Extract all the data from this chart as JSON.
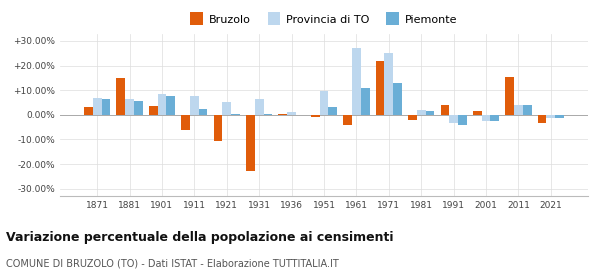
{
  "years": [
    1871,
    1881,
    1901,
    1911,
    1921,
    1931,
    1936,
    1951,
    1961,
    1971,
    1981,
    1991,
    2001,
    2011,
    2021
  ],
  "bruzolo": [
    3.0,
    15.0,
    3.5,
    -6.0,
    -10.5,
    -23.0,
    0.3,
    -1.0,
    -4.0,
    22.0,
    -2.0,
    4.0,
    1.5,
    15.5,
    -3.5
  ],
  "provincia_to": [
    7.0,
    6.5,
    8.5,
    7.5,
    5.0,
    6.5,
    1.0,
    9.5,
    27.0,
    25.0,
    2.0,
    -3.5,
    -2.5,
    4.0,
    -1.5
  ],
  "piemonte": [
    6.5,
    5.5,
    7.5,
    2.5,
    0.5,
    0.5,
    0.0,
    3.0,
    11.0,
    13.0,
    1.5,
    -4.0,
    -2.5,
    4.0,
    -1.5
  ],
  "color_bruzolo": "#e05c0a",
  "color_provincia": "#bdd7ee",
  "color_piemonte": "#6aaed6",
  "ylim": [
    -33,
    33
  ],
  "yticks": [
    -30,
    -20,
    -10,
    0,
    10,
    20,
    30
  ],
  "title": "Variazione percentuale della popolazione ai censimenti",
  "subtitle": "COMUNE DI BRUZOLO (TO) - Dati ISTAT - Elaborazione TUTTITALIA.IT",
  "legend_labels": [
    "Bruzolo",
    "Provincia di TO",
    "Piemonte"
  ],
  "bar_width": 0.27,
  "background_color": "#ffffff",
  "grid_color": "#dddddd"
}
